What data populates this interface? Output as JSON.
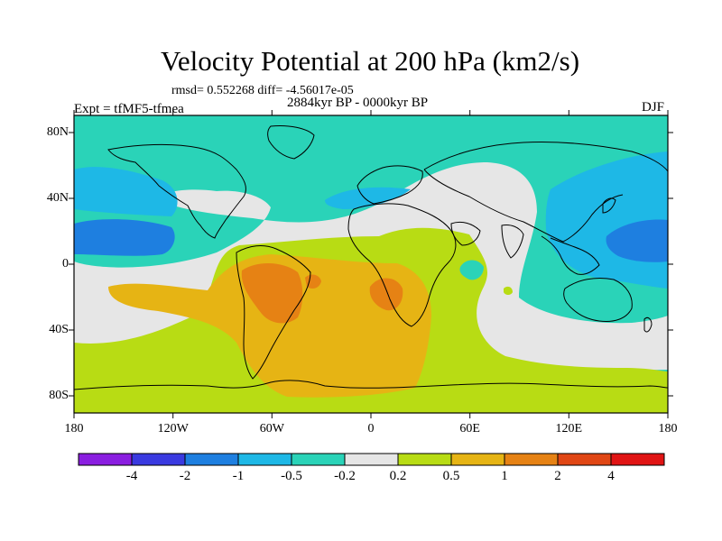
{
  "title": "Velocity Potential at 200 hPa (km2/s)",
  "stats_line": "rmsd= 0.552268 diff= -4.56017e-05",
  "experiment": "Expt = tfMF5-tfmea",
  "period": "2884kyr BP - 0000kyr BP",
  "season": "DJF",
  "map": {
    "projection": "cylindrical equidistant",
    "lon_range": [
      -180,
      180
    ],
    "lat_range": [
      -90,
      90
    ],
    "x_tick_labels": [
      "180",
      "120W",
      "60W",
      "0",
      "60E",
      "120E",
      "180"
    ],
    "y_tick_labels": [
      "80N",
      "40N",
      "0",
      "40S",
      "80S"
    ]
  },
  "colorbar": {
    "levels": [
      "-4",
      "-2",
      "-1",
      "-0.5",
      "-0.2",
      "0.2",
      "0.5",
      "1",
      "2",
      "4"
    ],
    "colors": [
      "#8a1ee0",
      "#3a3ae0",
      "#1e7fe0",
      "#1eb8e6",
      "#2ad3b8",
      "#e6e6e6",
      "#b8dc14",
      "#e6b414",
      "#e68214",
      "#e04614",
      "#e01414"
    ]
  },
  "colors": {
    "band_neg_1": "#1e7fe0",
    "band_neg_05": "#1eb8e6",
    "band_neg_02": "#2ad3b8",
    "band_zero": "#e6e6e6",
    "band_pos_02": "#b8dc14",
    "band_pos_05": "#e6b414",
    "band_pos_1": "#e68214"
  }
}
